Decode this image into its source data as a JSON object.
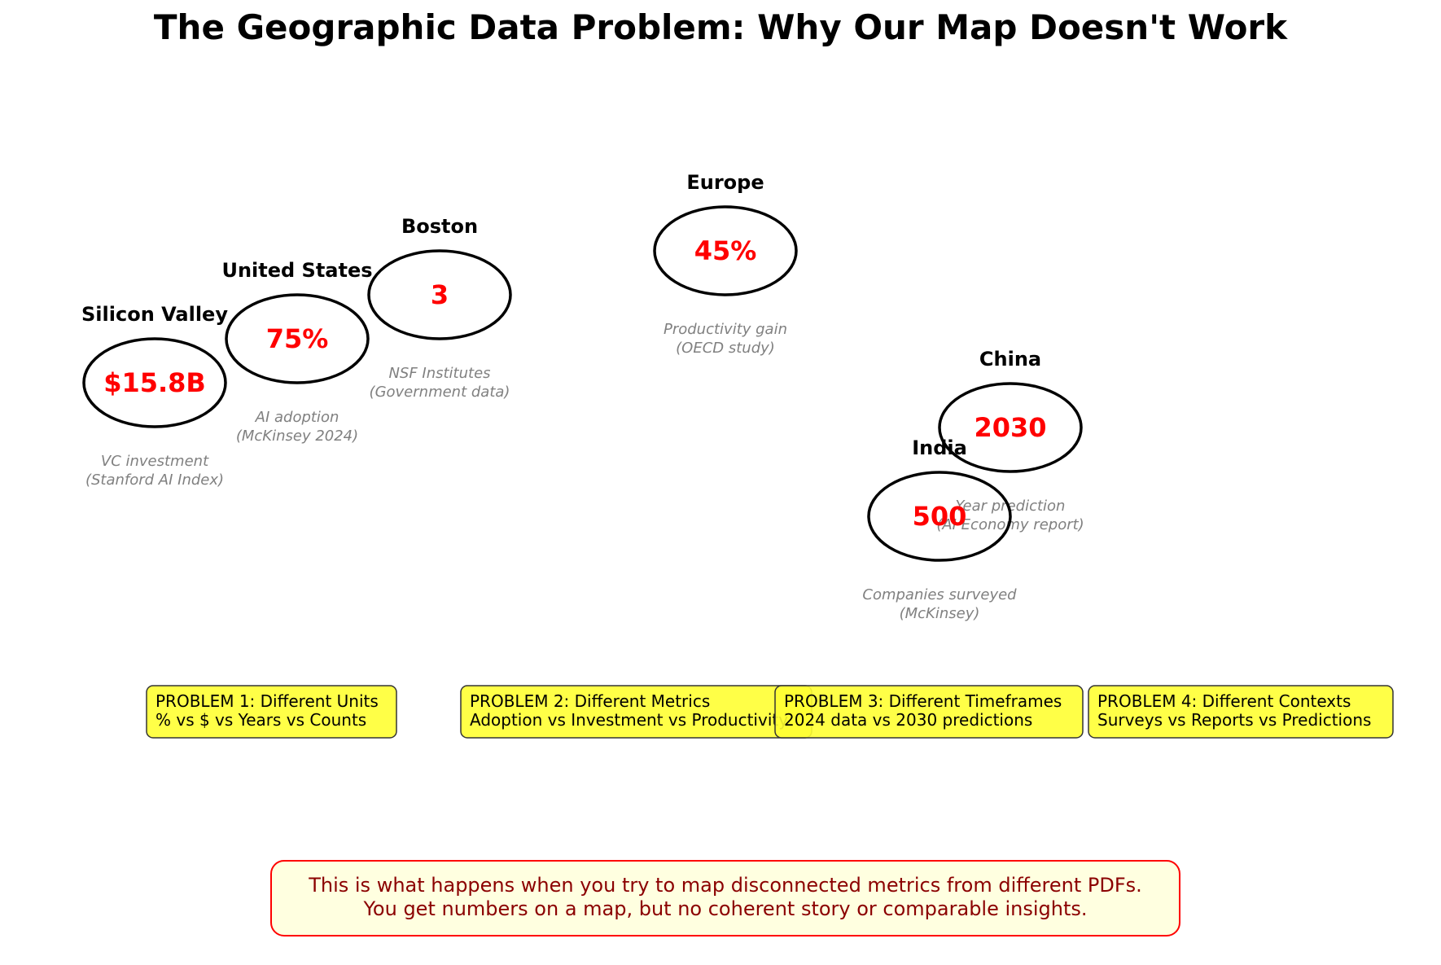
{
  "title": "The Geographic Data Problem: Why Our Map Doesn't Work",
  "regions": [
    {
      "name": "Silicon Valley",
      "value": "$15.8B",
      "note_line1": "VC investment",
      "note_line2": "(Stanford AI Index)"
    },
    {
      "name": "United States",
      "value": "75%",
      "note_line1": "AI adoption",
      "note_line2": "(McKinsey 2024)"
    },
    {
      "name": "Boston",
      "value": "3",
      "note_line1": "NSF Institutes",
      "note_line2": "(Government data)"
    },
    {
      "name": "Europe",
      "value": "45%",
      "note_line1": "Productivity gain",
      "note_line2": "(OECD study)"
    },
    {
      "name": "China",
      "value": "2030",
      "note_line1": "Year prediction",
      "note_line2": "(AI Economy report)"
    },
    {
      "name": "India",
      "value": "500",
      "note_line1": "Companies surveyed",
      "note_line2": "(McKinsey)"
    }
  ],
  "problems": [
    {
      "line1": "PROBLEM 1: Different Units",
      "line2": "% vs $ vs Years vs Counts"
    },
    {
      "line1": "PROBLEM 2: Different Metrics",
      "line2": "Adoption vs Investment vs Productivity"
    },
    {
      "line1": "PROBLEM 3: Different Timeframes",
      "line2": "2024 data vs 2030 predictions"
    },
    {
      "line1": "PROBLEM 4: Different Contexts",
      "line2": "Surveys vs Reports vs Predictions"
    }
  ],
  "footer": {
    "line1": "This is what happens when you try to map disconnected metrics from different PDFs.",
    "line2": "You get numbers on a map, but no coherent story or comparable insights."
  },
  "colors": {
    "value_text": "#ff0000",
    "note_text": "#808080",
    "problem_box_fill": "#ffff33",
    "footer_box_fill": "#ffffe0",
    "footer_border": "#ff0000",
    "footer_text": "#8b0000"
  }
}
